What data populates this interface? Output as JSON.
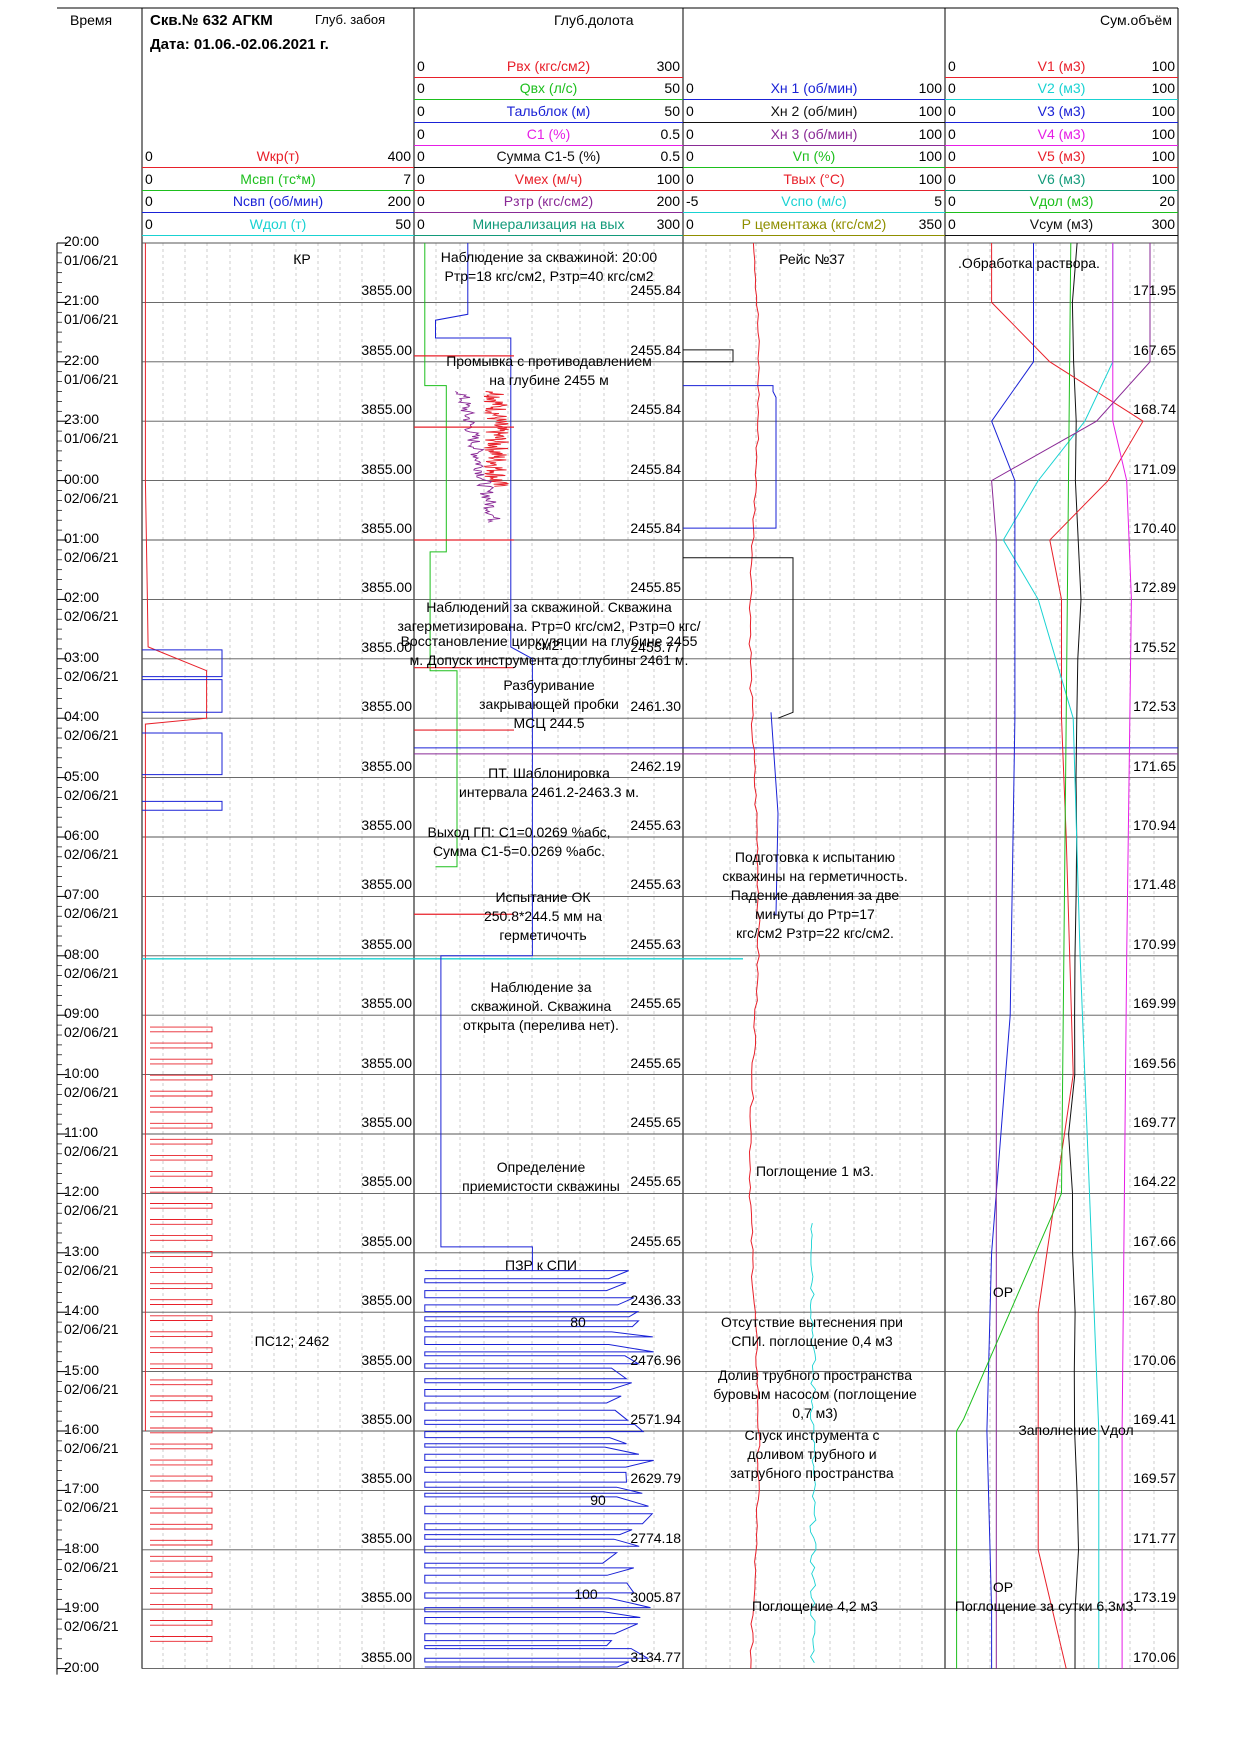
{
  "header": {
    "time_label": "Время",
    "well": "Скв.№ 632 АГКМ",
    "depth_label": "Глуб. забоя",
    "date": "Дата: 01.06.-02.06.2021 г.",
    "bit_depth_label": "Глуб.долота",
    "volume_label": "Сум.объём"
  },
  "colors": {
    "red": "#e8202a",
    "green": "#1dbf1d",
    "blue": "#1a22d6",
    "magenta": "#e61ee6",
    "purple": "#8a2a96",
    "cyan": "#19d2d2",
    "olive": "#8f8f00",
    "black": "#111111",
    "grid": "#9a9a9a"
  },
  "tracks": {
    "track1": [
      {
        "name": "Wкр(т)",
        "min": "0",
        "max": "400",
        "color": "#e8202a"
      },
      {
        "name": "Мсвп (тс*м)",
        "min": "0",
        "max": "7",
        "color": "#1dbf1d"
      },
      {
        "name": "Nсвп (об/мин)",
        "min": "0",
        "max": "200",
        "color": "#1a22d6"
      },
      {
        "name": "Wдол (т)",
        "min": "0",
        "max": "50",
        "color": "#19d2d2"
      }
    ],
    "track2": [
      {
        "name": "Рвх (кгс/см2)",
        "min": "0",
        "max": "300",
        "color": "#e8202a"
      },
      {
        "name": "Qвх (л/с)",
        "min": "0",
        "max": "50",
        "color": "#1dbf1d"
      },
      {
        "name": "Тальблок (м)",
        "min": "0",
        "max": "50",
        "color": "#1a22d6"
      },
      {
        "name": "С1 (%)",
        "min": "0",
        "max": "0.5",
        "color": "#e61ee6"
      },
      {
        "name": "Сумма С1-5 (%)",
        "min": "0",
        "max": "0.5",
        "color": "#111111"
      },
      {
        "name": "Vмех (м/ч)",
        "min": "0",
        "max": "100",
        "color": "#e8202a"
      },
      {
        "name": "Рзтр (кгс/см2)",
        "min": "0",
        "max": "200",
        "color": "#8a2a96"
      },
      {
        "name": "Минерализация на вых",
        "min": "0",
        "max": "300",
        "color": "#129a7a"
      }
    ],
    "track3": [
      {
        "name": "Хн 1 (об/мин)",
        "min": "0",
        "max": "100",
        "color": "#1a22d6"
      },
      {
        "name": "Хн 2 (об/мин)",
        "min": "0",
        "max": "100",
        "color": "#111111"
      },
      {
        "name": "Хн 3 (об/мин)",
        "min": "0",
        "max": "100",
        "color": "#8a2a96"
      },
      {
        "name": "Vп (%)",
        "min": "0",
        "max": "100",
        "color": "#1dbf1d"
      },
      {
        "name": "Твых (°С)",
        "min": "0",
        "max": "100",
        "color": "#e8202a"
      },
      {
        "name": "Vспо (м/с)",
        "min": "-5",
        "max": "5",
        "color": "#19d2d2"
      },
      {
        "name": "Р цементажа (кгс/см2)",
        "min": "0",
        "max": "350",
        "color": "#8f8f00"
      }
    ],
    "track4": [
      {
        "name": "V1 (м3)",
        "min": "0",
        "max": "100",
        "color": "#e8202a"
      },
      {
        "name": "V2 (м3)",
        "min": "0",
        "max": "100",
        "color": "#19d2d2"
      },
      {
        "name": "V3 (м3)",
        "min": "0",
        "max": "100",
        "color": "#1a22d6"
      },
      {
        "name": "V4 (м3)",
        "min": "0",
        "max": "100",
        "color": "#e61ee6"
      },
      {
        "name": "V5 (м3)",
        "min": "0",
        "max": "100",
        "color": "#e8202a"
      },
      {
        "name": "V6 (м3)",
        "min": "0",
        "max": "100",
        "color": "#129a7a"
      },
      {
        "name": "Vдол (м3)",
        "min": "0",
        "max": "20",
        "color": "#1dbf1d"
      },
      {
        "name": "Vсум (м3)",
        "min": "0",
        "max": "300",
        "color": "#111111"
      }
    ]
  },
  "chart_data": {
    "type": "line",
    "time_ticks": [
      {
        "time": "20:00",
        "date": "01/06/21"
      },
      {
        "time": "21:00",
        "date": "01/06/21"
      },
      {
        "time": "22:00",
        "date": "01/06/21"
      },
      {
        "time": "23:00",
        "date": "01/06/21"
      },
      {
        "time": "00:00",
        "date": "02/06/21"
      },
      {
        "time": "01:00",
        "date": "02/06/21"
      },
      {
        "time": "02:00",
        "date": "02/06/21"
      },
      {
        "time": "03:00",
        "date": "02/06/21"
      },
      {
        "time": "04:00",
        "date": "02/06/21"
      },
      {
        "time": "05:00",
        "date": "02/06/21"
      },
      {
        "time": "06:00",
        "date": "02/06/21"
      },
      {
        "time": "07:00",
        "date": "02/06/21"
      },
      {
        "time": "08:00",
        "date": "02/06/21"
      },
      {
        "time": "09:00",
        "date": "02/06/21"
      },
      {
        "time": "10:00",
        "date": "02/06/21"
      },
      {
        "time": "11:00",
        "date": "02/06/21"
      },
      {
        "time": "12:00",
        "date": "02/06/21"
      },
      {
        "time": "13:00",
        "date": "02/06/21"
      },
      {
        "time": "14:00",
        "date": "02/06/21"
      },
      {
        "time": "15:00",
        "date": "02/06/21"
      },
      {
        "time": "16:00",
        "date": "02/06/21"
      },
      {
        "time": "17:00",
        "date": "02/06/21"
      },
      {
        "time": "18:00",
        "date": "02/06/21"
      },
      {
        "time": "19:00",
        "date": "02/06/21"
      },
      {
        "time": "20:00",
        "date": ""
      }
    ],
    "hole_depth": [
      "3855.00",
      "3855.00",
      "3855.00",
      "3855.00",
      "3855.00",
      "3855.00",
      "3855.00",
      "3855.00",
      "3855.00",
      "3855.00",
      "3855.00",
      "3855.00",
      "3855.00",
      "3855.00",
      "3855.00",
      "3855.00",
      "3855.00",
      "3855.00",
      "3855.00",
      "3855.00",
      "3855.00",
      "3855.00",
      "3855.00",
      "3855.00"
    ],
    "bit_depth": [
      "2455.84",
      "2455.84",
      "2455.84",
      "2455.84",
      "2455.84",
      "2455.85",
      "2455.77",
      "2461.30",
      "2462.19",
      "2455.63",
      "2455.63",
      "2455.63",
      "2455.65",
      "2455.65",
      "2455.65",
      "2455.65",
      "2455.65",
      "2436.33",
      "2476.96",
      "2571.94",
      "2629.79",
      "2774.18",
      "3005.87",
      "3134.77"
    ],
    "total_volume": [
      "171.95",
      "167.65",
      "168.74",
      "171.09",
      "170.40",
      "172.89",
      "175.52",
      "172.53",
      "171.65",
      "170.94",
      "171.48",
      "170.99",
      "169.99",
      "169.56",
      "169.77",
      "164.22",
      "167.66",
      "167.80",
      "170.06",
      "169.41",
      "169.57",
      "171.77",
      "173.19",
      "170.06"
    ],
    "Wkr_t": [
      [
        0,
        5
      ],
      [
        2,
        5
      ],
      [
        4,
        5
      ],
      [
        6,
        8
      ],
      [
        6.8,
        9
      ],
      [
        7.2,
        95
      ],
      [
        8,
        95
      ],
      [
        8.1,
        5
      ],
      [
        13,
        5
      ],
      [
        13.2,
        5
      ],
      [
        20,
        5
      ]
    ],
    "Vsum_m3": [
      [
        0,
        171.9
      ],
      [
        1,
        167.6
      ],
      [
        2,
        168.7
      ],
      [
        3,
        171.1
      ],
      [
        4,
        170.4
      ],
      [
        5,
        172.9
      ],
      [
        6,
        175.5
      ],
      [
        7,
        172.5
      ],
      [
        8,
        171.6
      ],
      [
        9,
        170.9
      ],
      [
        10,
        171.5
      ],
      [
        11,
        171.0
      ],
      [
        12,
        170.0
      ],
      [
        13,
        169.6
      ],
      [
        14,
        169.8
      ],
      [
        15,
        164.2
      ],
      [
        16,
        167.7
      ],
      [
        17,
        167.8
      ],
      [
        18,
        170.1
      ],
      [
        19,
        169.4
      ],
      [
        20,
        169.6
      ],
      [
        21,
        171.8
      ],
      [
        22,
        173.2
      ],
      [
        23,
        170.1
      ],
      [
        24,
        170.0
      ]
    ],
    "bit_depth_series": [
      [
        0,
        2455.84
      ],
      [
        6,
        2455.77
      ],
      [
        7,
        2461.3
      ],
      [
        8,
        2462.19
      ],
      [
        9,
        2455.63
      ],
      [
        16,
        2455.65
      ],
      [
        17,
        2436.33
      ],
      [
        18,
        2476.96
      ],
      [
        19,
        2571.94
      ],
      [
        20,
        2629.79
      ],
      [
        21,
        2774.18
      ],
      [
        22,
        3005.87
      ],
      [
        23,
        3134.77
      ]
    ]
  },
  "annotations": {
    "kr": "КР",
    "ps12": "ПС12; 2462",
    "t2": [
      "Наблюдение за скважиной: 20:00\nРтр=18 кгс/см2, Рзтр=40 кгс/см2",
      "Промывка с противодавлением\nна глубине 2455 м",
      "Наблюдений за скважиной. Скважина\nзагерметизирована. Ртр=0 кгс/см2, Рзтр=0 кгс/см2.",
      "Восстановление циркуляции на глубине 2455\nм. Допуск инструмента до глубины 2461 м.",
      "Разбуривание\nзакрывающей пробки\nМСЦ 244.5",
      "ПТ. Шаблонировка\nинтервала 2461.2-2463.3 м.",
      "Выход ГП: С1=0.0269 %абс,\nСумма С1-5=0.0269 %абс.",
      "Испытание ОК\n250.8*244.5 мм на\nгерметичочть",
      "Наблюдение за\nскважиной. Скважина\nоткрыта (перелива нет).",
      "Определение\nприемистости скважины",
      "ПЗР к СПИ"
    ],
    "t2_nums": [
      "80",
      "90",
      "100"
    ],
    "t3": [
      "Рейс №37",
      "Подготовка к испытанию\nскважины на герметичность.\nПадение давления за две\nминуты до Ртр=17\nкгс/см2 Рзтр=22 кгс/см2.",
      "Поглощение 1 м3.",
      "Отсутствие вытеснения при\nСПИ. поглощение 0,4 м3",
      "Долив трубного пространства\nбуровым насосом (поглощение\n0,7 м3)",
      "Спуск инструмента с\nдоливом трубного и\nзатрубного пространства",
      "Поглощение 4,2 м3"
    ],
    "t4": [
      ".Обработка раствора.",
      "ОР",
      "Заполнение Vдол",
      "ОР",
      "Поглощение за сутки 6,3м3."
    ]
  }
}
